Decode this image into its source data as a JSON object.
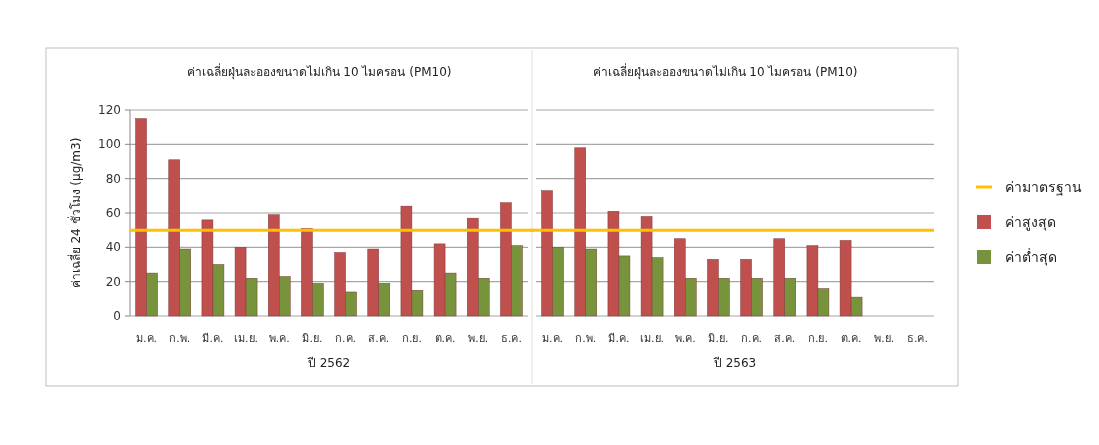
{
  "chart_data": [
    {
      "type": "bar",
      "title": "ค่าเฉลี่ยฝุ่นละอองขนาดไม่เกิน 10 ไมครอน (PM10)",
      "xlabel": "ปี 2562",
      "ylabel": "ค่าเฉลี่ย 24 ชั่วโมง (µg/m3)",
      "categories": [
        "ม.ค.",
        "ก.พ.",
        "มี.ค.",
        "เม.ย.",
        "พ.ค.",
        "มิ.ย.",
        "ก.ค.",
        "ส.ค.",
        "ก.ย.",
        "ต.ค.",
        "พ.ย.",
        "ธ.ค."
      ],
      "series": [
        {
          "color": "#c0504d",
          "values": [
            115,
            91,
            56,
            40,
            59,
            51,
            37,
            39,
            64,
            42,
            57,
            66
          ]
        },
        {
          "color": "#77933c",
          "values": [
            25,
            39,
            30,
            22,
            23,
            19,
            14,
            19,
            15,
            25,
            22,
            41
          ]
        }
      ],
      "ylim": [
        0,
        120
      ],
      "yticks": [
        0,
        20,
        40,
        60,
        80,
        100,
        120
      ],
      "grid": "y",
      "legend": false,
      "ref_lines": [
        {
          "axis": "y",
          "value": 50,
          "color": "#ffc000"
        }
      ]
    },
    {
      "type": "bar",
      "title": "ค่าเฉลี่ยฝุ่นละอองขนาดไม่เกิน 10 ไมครอน (PM10)",
      "xlabel": "ปี 2563",
      "categories": [
        "ม.ค.",
        "ก.พ.",
        "มี.ค.",
        "เม.ย.",
        "พ.ค.",
        "มิ.ย.",
        "ก.ค.",
        "ส.ค.",
        "ก.ย.",
        "ต.ค.",
        "พ.ย.",
        "ธ.ค."
      ],
      "series": [
        {
          "name": "ค่าสูงสุด",
          "color": "#c0504d",
          "values": [
            73,
            98,
            61,
            58,
            45,
            33,
            33,
            45,
            41,
            44,
            null,
            null
          ]
        },
        {
          "name": "ค่าต่ำสุด",
          "color": "#77933c",
          "values": [
            40,
            39,
            35,
            34,
            22,
            22,
            22,
            22,
            16,
            11,
            null,
            null
          ]
        }
      ],
      "ylim": [
        0,
        120
      ],
      "yticks": [
        0,
        20,
        40,
        60,
        80,
        100,
        120
      ],
      "grid": "y",
      "legend": "right",
      "tick_labels": "x",
      "ref_lines": [
        {
          "axis": "y",
          "value": 50,
          "label": "ค่ามาตรฐาน",
          "color": "#ffc000"
        }
      ]
    }
  ]
}
